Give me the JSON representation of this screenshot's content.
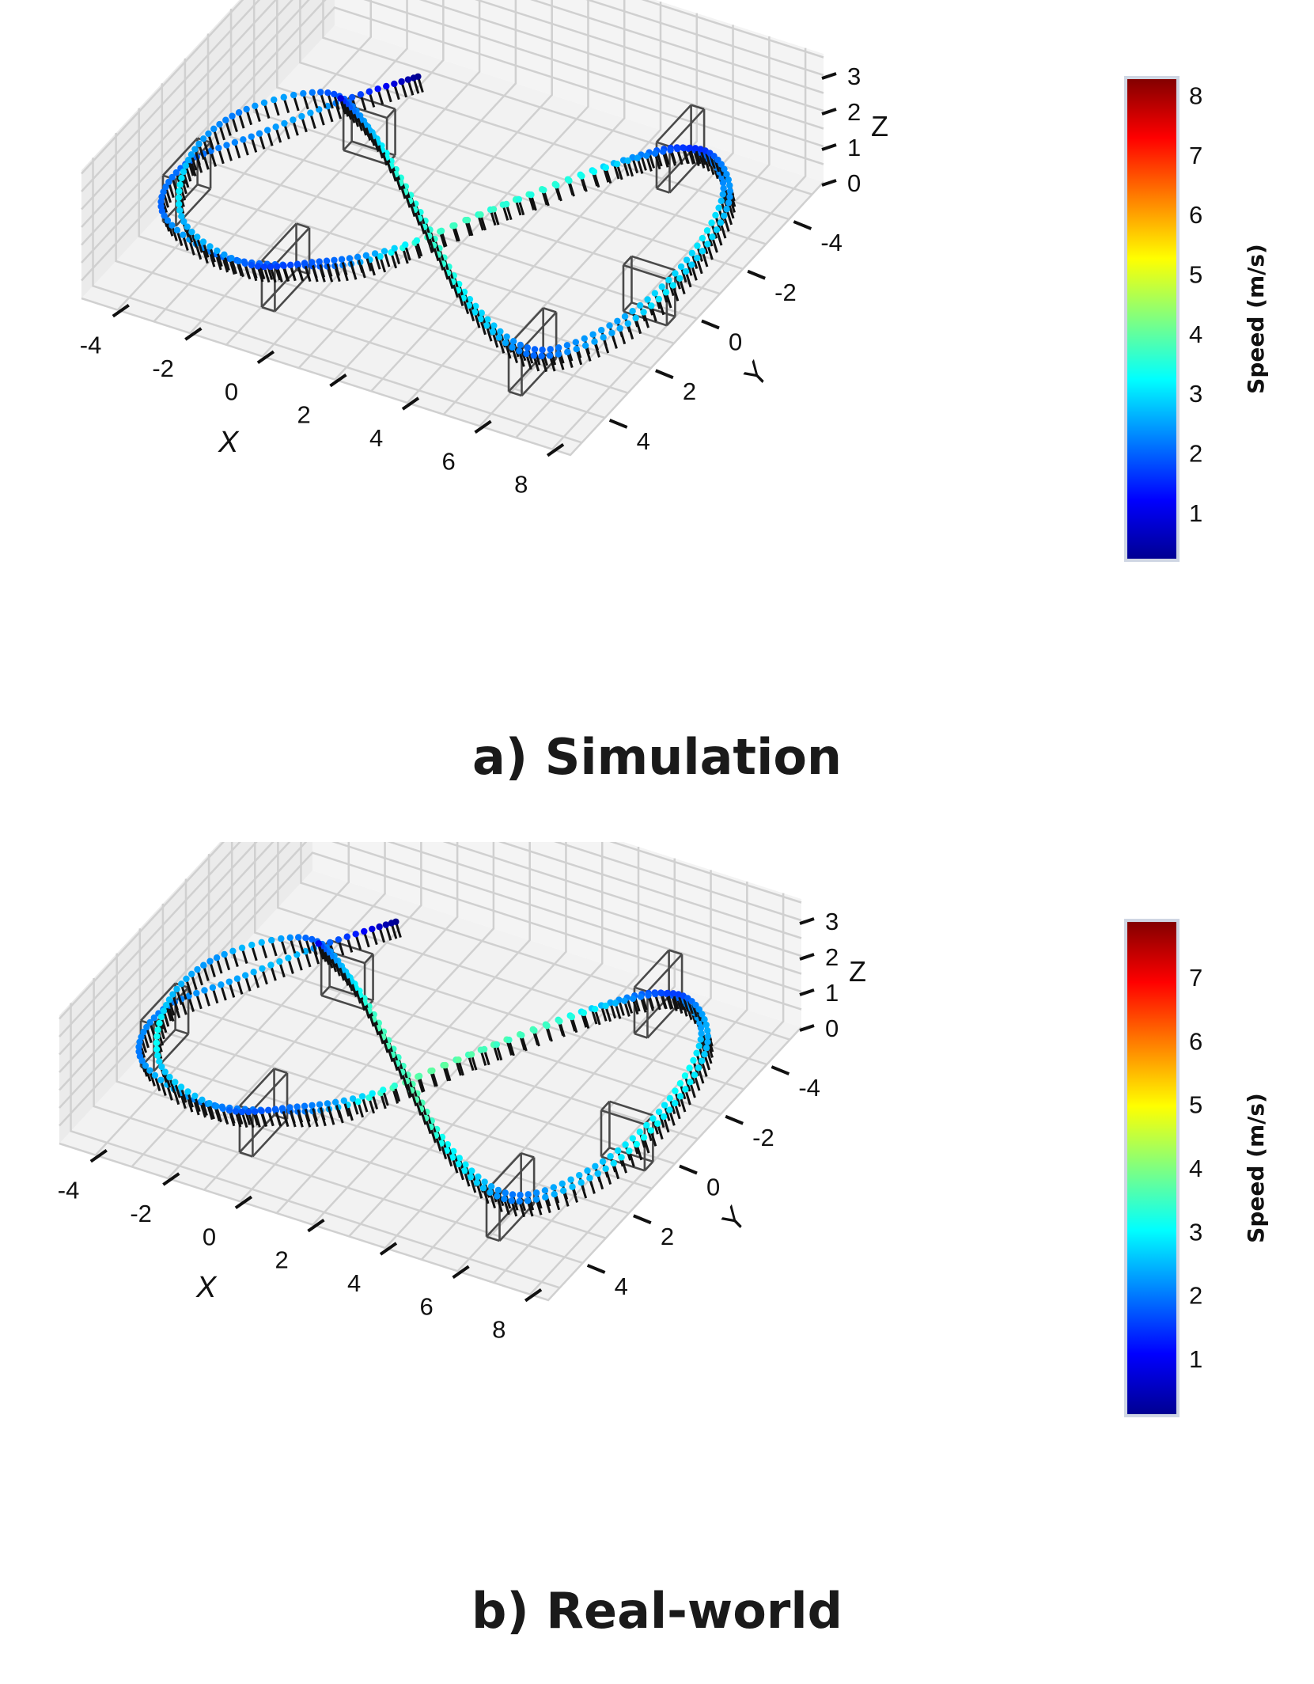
{
  "figure": {
    "panels": [
      {
        "id": "a",
        "caption": "a) Simulation",
        "colorbar": {
          "label": "Speed (m/s)",
          "min": 0.2,
          "max": 8.3,
          "ticks": [
            1,
            2,
            3,
            4,
            5,
            6,
            7,
            8
          ]
        }
      },
      {
        "id": "b",
        "caption": "b) Real-world",
        "colorbar": {
          "label": "Speed (m/s)",
          "min": 0.1,
          "max": 7.9,
          "ticks": [
            1,
            2,
            3,
            4,
            5,
            6,
            7
          ]
        }
      }
    ],
    "colormap": [
      "#00008f",
      "#0000ff",
      "#0080ff",
      "#00ffff",
      "#80ff80",
      "#ffff00",
      "#ff8000",
      "#ff0000",
      "#800000"
    ]
  },
  "chart_data": [
    {
      "type": "scatter",
      "title": "a) Simulation",
      "projection": "3d",
      "xlabel": "X",
      "ylabel": "Y",
      "zlabel": "Z",
      "xlim": [
        -5,
        8.5
      ],
      "ylim": [
        -5.5,
        5.5
      ],
      "zlim": [
        0,
        3
      ],
      "xticks": [
        -4,
        -2,
        0,
        2,
        4,
        6,
        8
      ],
      "yticks": [
        -4,
        -2,
        0,
        2,
        4
      ],
      "zticks": [
        0,
        1,
        2,
        3
      ],
      "grid": true,
      "colorbar_label": "Speed (m/s)",
      "trajectory": "figure-eight flight path through gates, points colored by speed",
      "gates": [
        {
          "x": -4,
          "y": 2.5,
          "z": 1.5
        },
        {
          "x": -1.5,
          "y": -1.5,
          "z": 1.0
        },
        {
          "x": 0,
          "y": 4.5,
          "z": 1.8
        },
        {
          "x": 5.5,
          "y": -4,
          "z": 1.0
        },
        {
          "x": 6.5,
          "y": 4,
          "z": 1.2
        },
        {
          "x": 7.5,
          "y": 0.5,
          "z": 0.8
        }
      ],
      "speed_range": [
        0.2,
        8.3
      ]
    },
    {
      "type": "scatter",
      "title": "b) Real-world",
      "projection": "3d",
      "xlabel": "X",
      "ylabel": "Y",
      "zlabel": "Z",
      "xlim": [
        -5,
        8.5
      ],
      "ylim": [
        -5.5,
        5.5
      ],
      "zlim": [
        0,
        3
      ],
      "xticks": [
        -4,
        -2,
        0,
        2,
        4,
        6,
        8
      ],
      "yticks": [
        -4,
        -2,
        0,
        2,
        4
      ],
      "zticks": [
        0,
        1,
        2,
        3
      ],
      "grid": true,
      "colorbar_label": "Speed (m/s)",
      "trajectory": "figure-eight flight path through gates, points colored by speed",
      "gates": [
        {
          "x": -4,
          "y": 2.5,
          "z": 1.5
        },
        {
          "x": -1.5,
          "y": -1.5,
          "z": 1.0
        },
        {
          "x": 0,
          "y": 4.5,
          "z": 1.8
        },
        {
          "x": 5.5,
          "y": -4,
          "z": 1.0
        },
        {
          "x": 6.5,
          "y": 4,
          "z": 1.2
        },
        {
          "x": 7.5,
          "y": 0.5,
          "z": 0.8
        }
      ],
      "speed_range": [
        0.1,
        7.9
      ]
    }
  ]
}
